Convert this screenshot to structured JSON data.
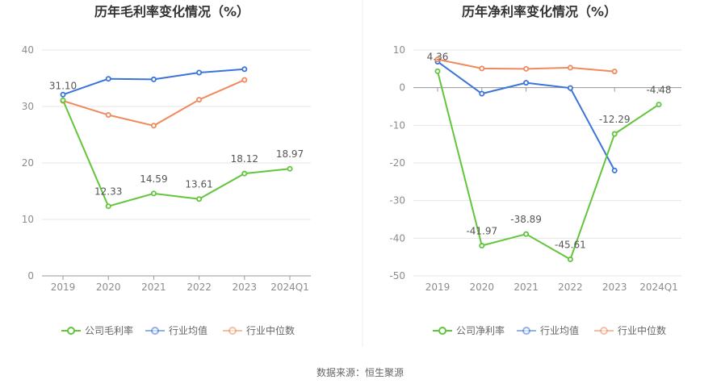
{
  "colors": {
    "company": "#62c53b",
    "industry_avg": "#3a74d9",
    "industry_median": "#f08a5d",
    "grid": "#e6e6e6",
    "axis": "#999999"
  },
  "source": "数据来源：恒生聚源",
  "chart_data": [
    {
      "type": "line",
      "title": "历年毛利率变化情况（%）",
      "categories": [
        "2019",
        "2020",
        "2021",
        "2022",
        "2023",
        "2024Q1"
      ],
      "ylim": [
        0,
        40
      ],
      "yticks": [
        0,
        10,
        20,
        30,
        40
      ],
      "grid": true,
      "legend": "bottom",
      "series": [
        {
          "name": "公司毛利率",
          "key": "company",
          "values": [
            31.1,
            12.33,
            14.59,
            13.61,
            18.12,
            18.97
          ],
          "labels": [
            "31.10",
            "12.33",
            "14.59",
            "13.61",
            "18.12",
            "18.97"
          ]
        },
        {
          "name": "行业均值",
          "key": "industry_avg",
          "values": [
            32.1,
            34.9,
            34.8,
            36.0,
            36.6,
            null
          ]
        },
        {
          "name": "行业中位数",
          "key": "industry_median",
          "values": [
            31.0,
            28.5,
            26.6,
            31.2,
            34.7,
            null
          ]
        }
      ]
    },
    {
      "type": "line",
      "title": "历年净利率变化情况（%）",
      "categories": [
        "2019",
        "2020",
        "2021",
        "2022",
        "2023",
        "2024Q1"
      ],
      "ylim": [
        -50,
        10
      ],
      "yticks": [
        -50,
        -40,
        -30,
        -20,
        -10,
        0,
        10
      ],
      "grid": true,
      "legend": "bottom",
      "series": [
        {
          "name": "公司净利率",
          "key": "company",
          "values": [
            4.36,
            -41.97,
            -38.89,
            -45.61,
            -12.29,
            -4.48
          ],
          "labels": [
            "4.36",
            "-41.97",
            "-38.89",
            "-45.61",
            "-12.29",
            "-4.48"
          ]
        },
        {
          "name": "行业均值",
          "key": "industry_avg",
          "values": [
            6.9,
            -1.6,
            1.3,
            -0.1,
            -22.0,
            null
          ]
        },
        {
          "name": "行业中位数",
          "key": "industry_median",
          "values": [
            7.5,
            5.1,
            5.0,
            5.3,
            4.3,
            null
          ]
        }
      ]
    }
  ]
}
